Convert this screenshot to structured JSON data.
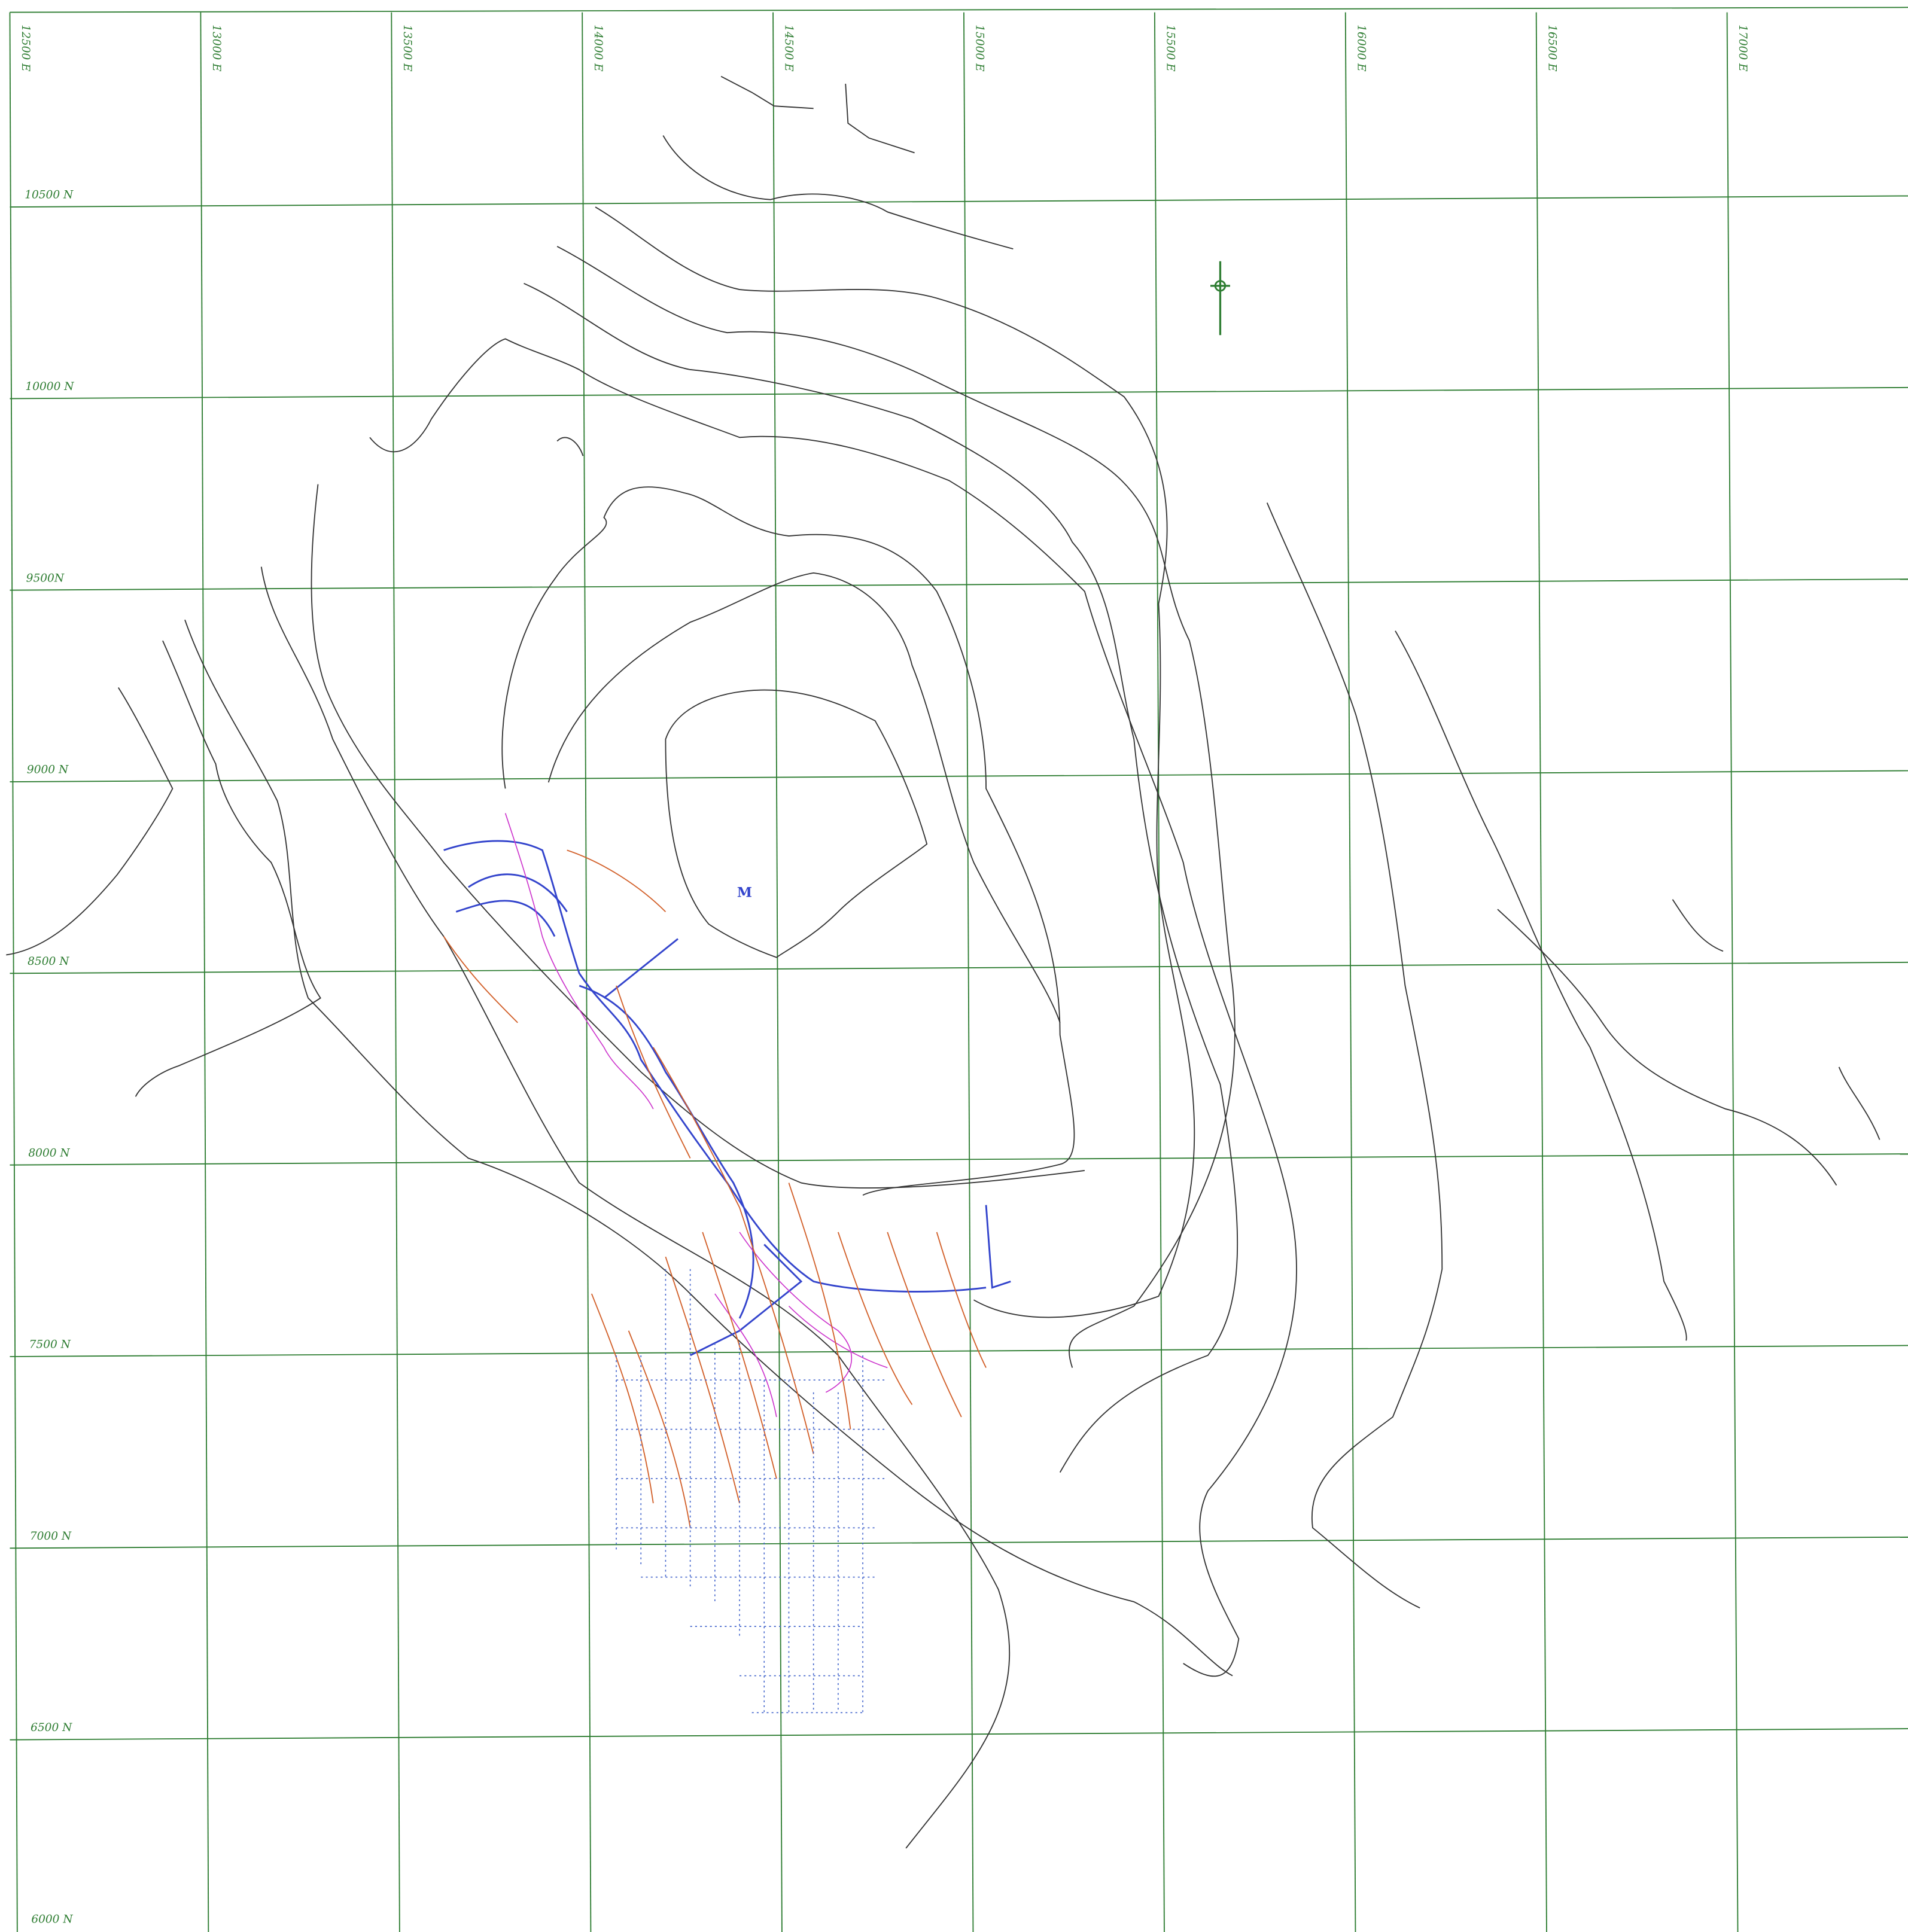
{
  "grid": {
    "eastings": [
      "12500 E",
      "13000 E",
      "13500 E",
      "14000 E",
      "14500 E",
      "15000 E",
      "15500 E",
      "16000 E",
      "16500 E",
      "17000 E"
    ],
    "northings": [
      "10500 N",
      "10000 N",
      "9500N",
      "9000 N",
      "8500 N",
      "8000 N",
      "7500 N",
      "7000 N",
      "6500 N",
      "6000 N"
    ]
  }
}
